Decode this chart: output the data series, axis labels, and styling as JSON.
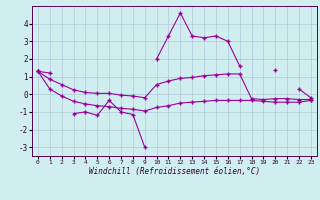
{
  "series": {
    "s1_x": [
      0,
      1,
      2,
      3,
      4,
      5,
      6,
      7,
      8,
      9,
      10,
      11,
      12,
      13,
      14,
      15,
      16,
      17,
      18,
      19,
      20,
      21,
      22,
      23
    ],
    "s1_y": [
      1.3,
      1.2,
      null,
      null,
      null,
      null,
      null,
      null,
      null,
      null,
      2.0,
      3.3,
      4.6,
      3.3,
      3.2,
      3.3,
      3.0,
      1.6,
      null,
      null,
      1.4,
      null,
      0.3,
      -0.2
    ],
    "s2_x": [
      3,
      4,
      5,
      6,
      7,
      8,
      9
    ],
    "s2_y": [
      -1.1,
      -1.0,
      -1.2,
      -0.35,
      -1.0,
      -1.15,
      -3.0
    ],
    "s3_x": [
      0,
      1,
      2,
      3,
      4,
      5,
      6,
      7,
      8,
      9,
      10,
      11,
      12,
      13,
      14,
      15,
      16,
      17,
      18,
      19,
      20,
      21,
      22,
      23
    ],
    "s3_y": [
      1.3,
      0.85,
      0.55,
      0.25,
      0.1,
      0.05,
      0.05,
      -0.05,
      -0.1,
      -0.2,
      0.55,
      0.75,
      0.9,
      0.95,
      1.05,
      1.1,
      1.15,
      1.15,
      -0.25,
      -0.3,
      -0.25,
      -0.25,
      -0.3,
      -0.3
    ],
    "s4_x": [
      0,
      1,
      2,
      3,
      4,
      5,
      6,
      7,
      8,
      9,
      10,
      11,
      12,
      13,
      14,
      15,
      16,
      17,
      18,
      19,
      20,
      21,
      22,
      23
    ],
    "s4_y": [
      1.3,
      0.3,
      -0.1,
      -0.4,
      -0.55,
      -0.65,
      -0.7,
      -0.8,
      -0.85,
      -0.95,
      -0.75,
      -0.65,
      -0.5,
      -0.45,
      -0.4,
      -0.35,
      -0.35,
      -0.35,
      -0.35,
      -0.4,
      -0.45,
      -0.45,
      -0.45,
      -0.35
    ]
  },
  "color": "#990099",
  "bg_color": "#d0eef0",
  "grid_color": "#b0c8d8",
  "xlabel": "Windchill (Refroidissement éolien,°C)",
  "ylim": [
    -3.5,
    5.0
  ],
  "xlim": [
    -0.5,
    23.5
  ],
  "yticks": [
    -3,
    -2,
    -1,
    0,
    1,
    2,
    3,
    4
  ],
  "xticks": [
    0,
    1,
    2,
    3,
    4,
    5,
    6,
    7,
    8,
    9,
    10,
    11,
    12,
    13,
    14,
    15,
    16,
    17,
    18,
    19,
    20,
    21,
    22,
    23
  ]
}
